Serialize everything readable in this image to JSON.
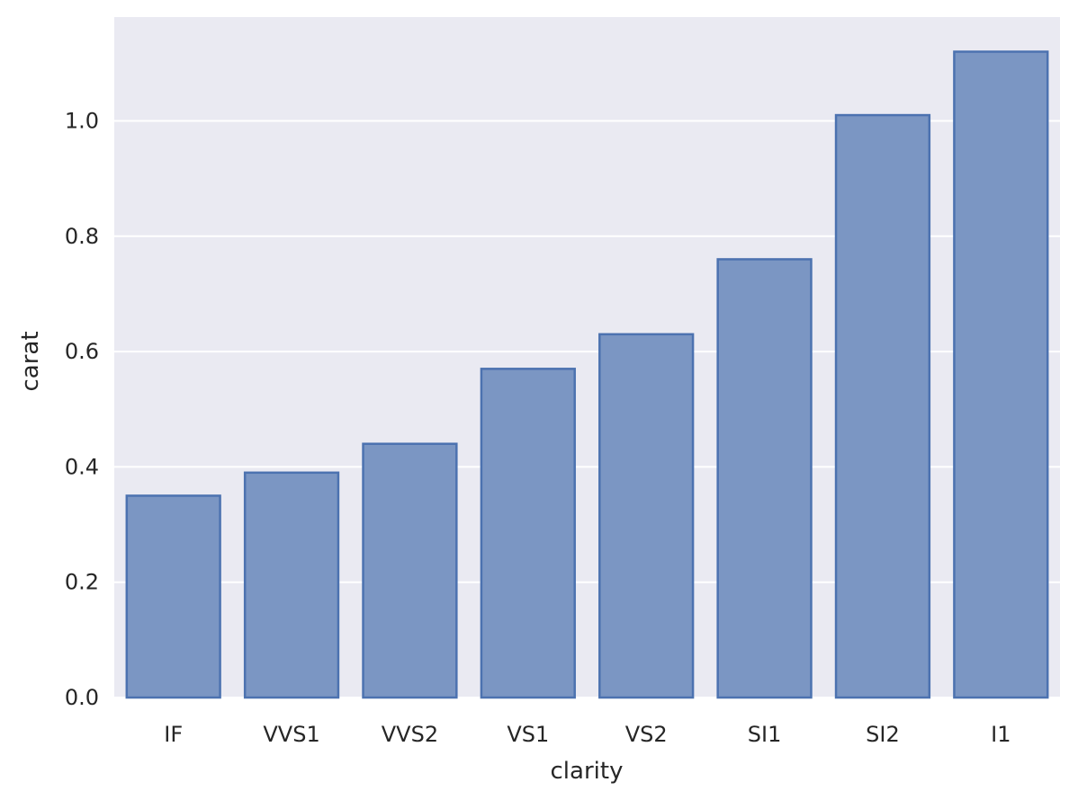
{
  "chart_data": {
    "type": "bar",
    "title": "",
    "xlabel": "clarity",
    "ylabel": "carat",
    "categories": [
      "IF",
      "VVS1",
      "VVS2",
      "VS1",
      "VS2",
      "SI1",
      "SI2",
      "I1"
    ],
    "values": [
      0.35,
      0.39,
      0.44,
      0.57,
      0.63,
      0.76,
      1.01,
      1.12
    ],
    "ylim": [
      0,
      1.18
    ],
    "yticks": [
      0.0,
      0.2,
      0.4,
      0.6,
      0.8,
      1.0
    ],
    "ytick_labels": [
      "0.0",
      "0.2",
      "0.4",
      "0.6",
      "0.8",
      "1.0"
    ],
    "grid": true,
    "legend": "none"
  },
  "colors": {
    "plot_background": "#eaeaf2",
    "grid": "#ffffff",
    "bar_fill": "#7b96c3",
    "bar_edge": "#4c72b0"
  }
}
